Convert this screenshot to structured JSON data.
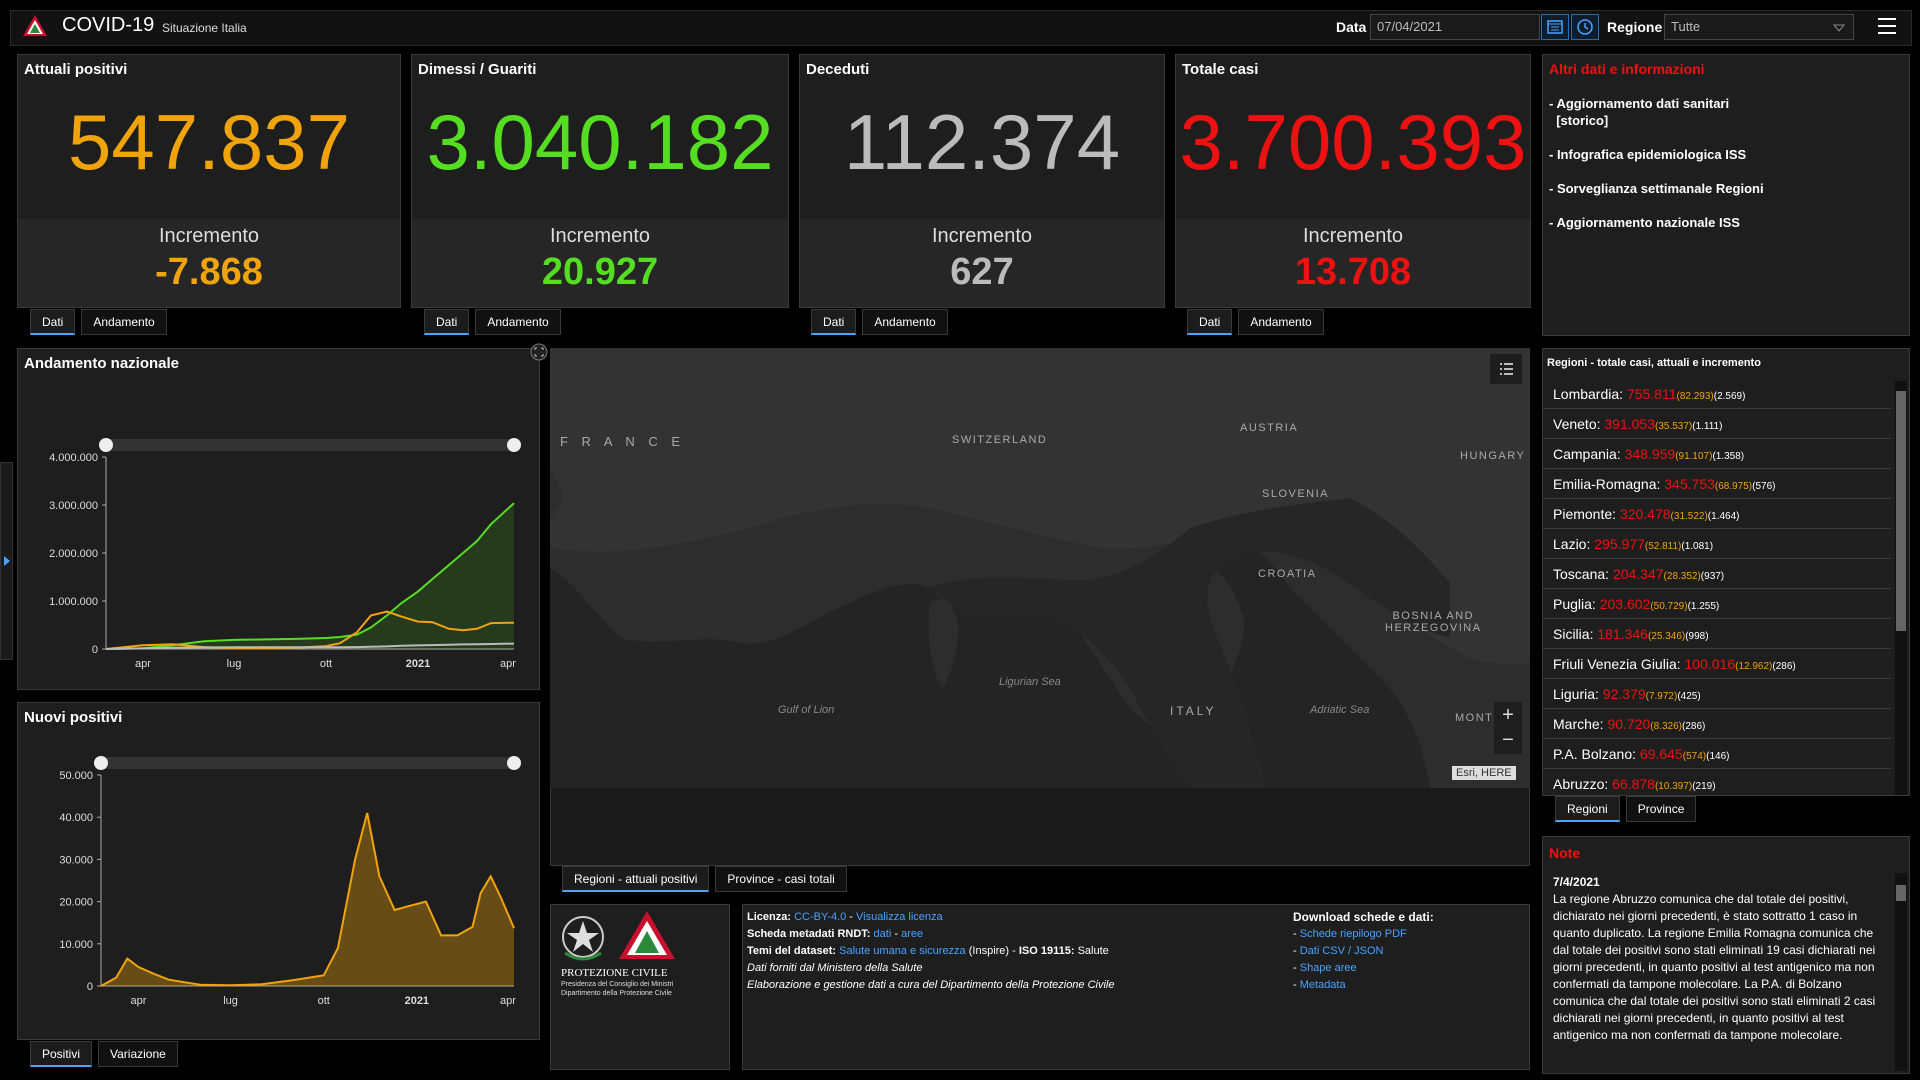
{
  "header": {
    "title": "COVID-19",
    "subtitle": "Situazione Italia",
    "date_label": "Data",
    "date_value": "07/04/2021",
    "region_label": "Regione",
    "region_value": "Tutte"
  },
  "stats": [
    {
      "title": "Attuali positivi",
      "value": "547.837",
      "inc_label": "Incremento",
      "inc_value": "-7.868",
      "color": "#f0a30a"
    },
    {
      "title": "Dimessi / Guariti",
      "value": "3.040.182",
      "inc_label": "Incremento",
      "inc_value": "20.927",
      "color": "#55dd22"
    },
    {
      "title": "Deceduti",
      "value": "112.374",
      "inc_label": "Incremento",
      "inc_value": "627",
      "color": "#bbbbbb"
    },
    {
      "title": "Totale casi",
      "value": "3.700.393",
      "inc_label": "Incremento",
      "inc_value": "13.708",
      "color": "#ee1111"
    }
  ],
  "stat_tabs": {
    "dati": "Dati",
    "andamento": "Andamento"
  },
  "info": {
    "title": "Altri dati e informazioni",
    "items": [
      "- Aggiornamento dati sanitari\n  [storico]",
      "- Infografica epidemiologica ISS",
      "- Sorveglianza settimanale Regioni",
      "- Aggiornamento nazionale ISS"
    ]
  },
  "chart_data": [
    {
      "type": "line",
      "title": "Andamento nazionale",
      "xlabel": "",
      "ylabel": "",
      "x_tick_labels": [
        "apr",
        "lug",
        "ott",
        "2021",
        "apr"
      ],
      "y_tick_labels": [
        "0",
        "1.000.000",
        "2.000.000",
        "3.000.000",
        "4.000.000"
      ],
      "ylim": [
        0,
        4000000
      ],
      "x": [
        "2020-02-24",
        "2020-04-01",
        "2020-05-01",
        "2020-06-01",
        "2020-07-01",
        "2020-08-01",
        "2020-09-01",
        "2020-10-01",
        "2020-10-15",
        "2020-11-01",
        "2020-11-15",
        "2020-12-01",
        "2020-12-15",
        "2021-01-01",
        "2021-01-15",
        "2021-02-01",
        "2021-02-15",
        "2021-03-01",
        "2021-03-15",
        "2021-04-07"
      ],
      "series": [
        {
          "color": "#55dd22",
          "values": [
            0,
            15000,
            80000,
            160000,
            190000,
            200000,
            210000,
            230000,
            250000,
            300000,
            450000,
            700000,
            950000,
            1200000,
            1450000,
            1750000,
            2000000,
            2250000,
            2600000,
            3040182
          ]
        },
        {
          "color": "#f0a30a",
          "values": [
            0,
            80000,
            100000,
            40000,
            15000,
            12000,
            25000,
            60000,
            120000,
            350000,
            700000,
            780000,
            680000,
            570000,
            560000,
            420000,
            390000,
            420000,
            540000,
            547837
          ]
        },
        {
          "color": "#bbbbbb",
          "values": [
            0,
            13000,
            28000,
            33000,
            35000,
            35000,
            35000,
            36000,
            37000,
            39000,
            45000,
            55000,
            66000,
            75000,
            82000,
            89000,
            95000,
            98000,
            104000,
            112374
          ]
        }
      ]
    },
    {
      "type": "area",
      "title": "Nuovi positivi",
      "xlabel": "",
      "ylabel": "",
      "x_tick_labels": [
        "apr",
        "lug",
        "ott",
        "2021",
        "apr"
      ],
      "y_tick_labels": [
        "0",
        "10.000",
        "20.000",
        "30.000",
        "40.000",
        "50.000"
      ],
      "ylim": [
        0,
        50000
      ],
      "x": [
        "2020-02-24",
        "2020-03-10",
        "2020-03-21",
        "2020-04-01",
        "2020-04-15",
        "2020-05-01",
        "2020-06-01",
        "2020-07-01",
        "2020-08-01",
        "2020-09-01",
        "2020-10-01",
        "2020-10-15",
        "2020-11-01",
        "2020-11-13",
        "2020-11-25",
        "2020-12-10",
        "2020-12-25",
        "2021-01-10",
        "2021-01-25",
        "2021-02-10",
        "2021-02-25",
        "2021-03-05",
        "2021-03-15",
        "2021-03-25",
        "2021-04-07"
      ],
      "series": [
        {
          "color": "#f0a30a",
          "values": [
            0,
            2000,
            6500,
            4500,
            3000,
            1500,
            300,
            200,
            400,
            1400,
            2500,
            9000,
            30000,
            41000,
            26000,
            18000,
            19000,
            20000,
            12000,
            12000,
            14000,
            22000,
            26000,
            21000,
            13708
          ]
        }
      ]
    }
  ],
  "chart_tabs": {
    "positivi": "Positivi",
    "variazione": "Variazione"
  },
  "map": {
    "labels": {
      "france": "F R A N C E",
      "switzerland": "SWITZERLAND",
      "austria": "AUSTRIA",
      "hungary": "HUNGARY",
      "slovenia": "SLOVENIA",
      "croatia": "CROATIA",
      "bosnia": "BOSNIA AND\nHERZEGOVINA",
      "italy": "ITALY",
      "mont": "MONT"
    },
    "seas": {
      "ligurian": "Ligurian Sea",
      "lion": "Gulf of Lion",
      "adriatic": "Adriatic Sea"
    },
    "attribution": "Esri, HERE",
    "tab_regioni": "Regioni - attuali positivi",
    "tab_province": "Province - casi totali"
  },
  "regions": {
    "title": "Regioni - totale casi, attuali e incremento",
    "rows": [
      {
        "name": "Lombardia:",
        "total": "755.811",
        "active": "(82.293)",
        "inc": "(2.569)"
      },
      {
        "name": "Veneto:",
        "total": "391.053",
        "active": "(35.537)",
        "inc": "(1.111)"
      },
      {
        "name": "Campania:",
        "total": "348.959",
        "active": "(91.107)",
        "inc": "(1.358)"
      },
      {
        "name": "Emilia-Romagna:",
        "total": "345.753",
        "active": "(68.975)",
        "inc": "(576)"
      },
      {
        "name": "Piemonte:",
        "total": "320.478",
        "active": "(31.522)",
        "inc": "(1.464)"
      },
      {
        "name": "Lazio:",
        "total": "295.977",
        "active": "(52.811)",
        "inc": "(1.081)"
      },
      {
        "name": "Toscana:",
        "total": "204.347",
        "active": "(28.352)",
        "inc": "(937)"
      },
      {
        "name": "Puglia:",
        "total": "203.602",
        "active": "(50.729)",
        "inc": "(1.255)"
      },
      {
        "name": "Sicilia:",
        "total": "181.346",
        "active": "(25.346)",
        "inc": "(998)"
      },
      {
        "name": "Friuli Venezia Giulia:",
        "total": "100.016",
        "active": "(12.962)",
        "inc": "(286)"
      },
      {
        "name": "Liguria:",
        "total": "92.379",
        "active": "(7.972)",
        "inc": "(425)"
      },
      {
        "name": "Marche:",
        "total": "90.720",
        "active": "(8.326)",
        "inc": "(286)"
      },
      {
        "name": "P.A. Bolzano:",
        "total": "69.645",
        "active": "(574)",
        "inc": "(146)"
      },
      {
        "name": "Abruzzo:",
        "total": "66.878",
        "active": "(10.397)",
        "inc": "(219)"
      }
    ],
    "tab_regioni": "Regioni",
    "tab_province": "Province"
  },
  "note": {
    "title": "Note",
    "date": "7/4/2021",
    "text": "La regione Abruzzo comunica che dal totale dei positivi, dichiarato nei giorni precedenti, è stato sottratto 1 caso in quanto duplicato. La regione Emilia Romagna comunica che dal totale dei positivi sono stati eliminati 19 casi dichiarati nei giorni precedenti, in quanto positivi al test antigenico ma non confermati da tampone molecolare. La P.A. di Bolzano comunica che dal totale dei positivi sono stati eliminati 2 casi dichiarati nei giorni precedenti, in quanto positivi al test antigenico ma non confermati da tampone molecolare."
  },
  "footer": {
    "org_line1": "PROTEZIONE CIVILE",
    "org_line2": "Presidenza del Consiglio dei Ministri",
    "org_line3": "Dipartimento della Protezione Civile",
    "licenza_label": "Licenza:",
    "licenza_link": "CC-BY-4.0",
    "licenza_sep": " - ",
    "licenza_view": "Visualizza licenza",
    "rndt_label": "Scheda metadati RNDT:",
    "rndt_dati": "dati",
    "rndt_sep": " - ",
    "rndt_aree": "aree",
    "temi_label": "Temi del dataset:",
    "temi_link": "Salute umana e sicurezza",
    "temi_rest": " (Inspire) - ",
    "iso_label": "ISO 19115:",
    "iso_value": " Salute",
    "line4": "Dati forniti dal Ministero della Salute",
    "line5": "Elaborazione e gestione dati a cura del Dipartimento della Protezione Civile",
    "download_title": "Download schede e dati:",
    "downloads": [
      "Schede riepilogo PDF",
      "Dati CSV / JSON",
      "Shape aree",
      "Metadata"
    ]
  },
  "colors": {
    "accent": "#4aa3ff",
    "panel": "#1e1e1e"
  }
}
